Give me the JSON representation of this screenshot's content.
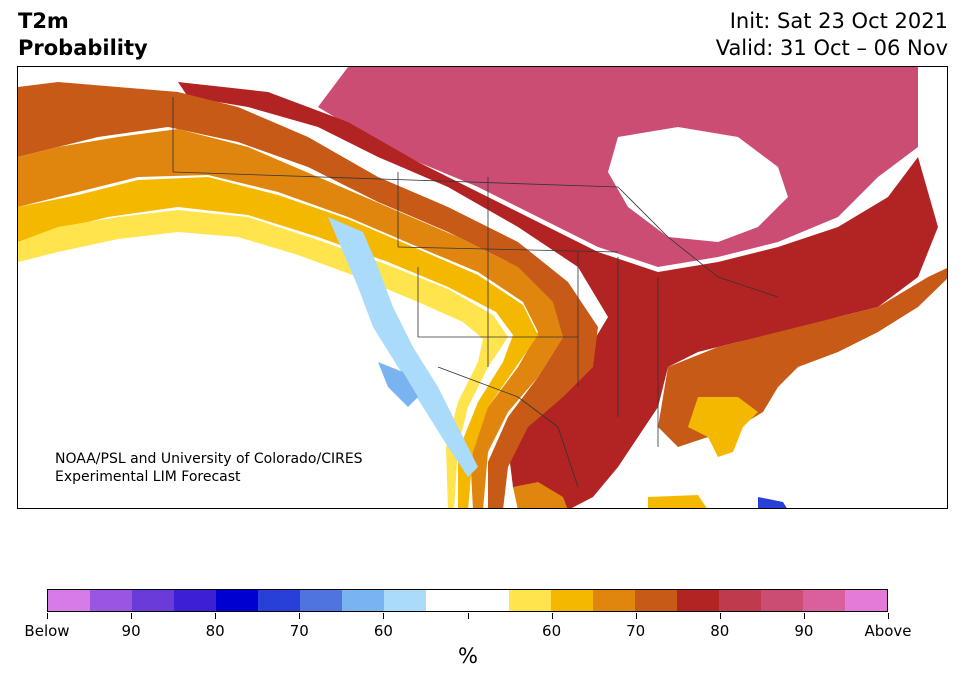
{
  "title": {
    "left_line1": "T2m",
    "left_line2": "Probability",
    "right_line1": "Init: Sat 23 Oct 2021",
    "right_line2": "Valid: 31 Oct – 06 Nov"
  },
  "credit": {
    "line1": "NOAA/PSL and University of Colorado/CIRES",
    "line2": "Experimental LIM Forecast"
  },
  "colorbar": {
    "unit": "%",
    "colors": [
      "#d67be8",
      "#9a56e0",
      "#6a3bd8",
      "#3d1fd4",
      "#0000d0",
      "#2840d8",
      "#4f74e0",
      "#7ab4f0",
      "#aadbfb",
      "#ffffff",
      "#ffffff",
      "#ffe44e",
      "#f5b800",
      "#e0860e",
      "#c85a18",
      "#b22424",
      "#bf3a4c",
      "#cc4d74",
      "#d9609c",
      "#e57bd8"
    ],
    "tick_labels": [
      "Below",
      "90",
      "80",
      "70",
      "60",
      "",
      "60",
      "70",
      "80",
      "90",
      "Above"
    ]
  },
  "map": {
    "fills": {
      "above_90": "#cc4d74",
      "above_80": "#bf3a4c",
      "above_70": "#b22424",
      "above_60": "#c85a18",
      "above_55": "#e0860e",
      "above_50": "#f5b800",
      "above_45": "#ffe44e",
      "below_50": "#aadbfb",
      "below_60": "#7ab4f0",
      "below_70": "#2840d8",
      "ocean": "#ffffff",
      "border": "#333333"
    }
  }
}
